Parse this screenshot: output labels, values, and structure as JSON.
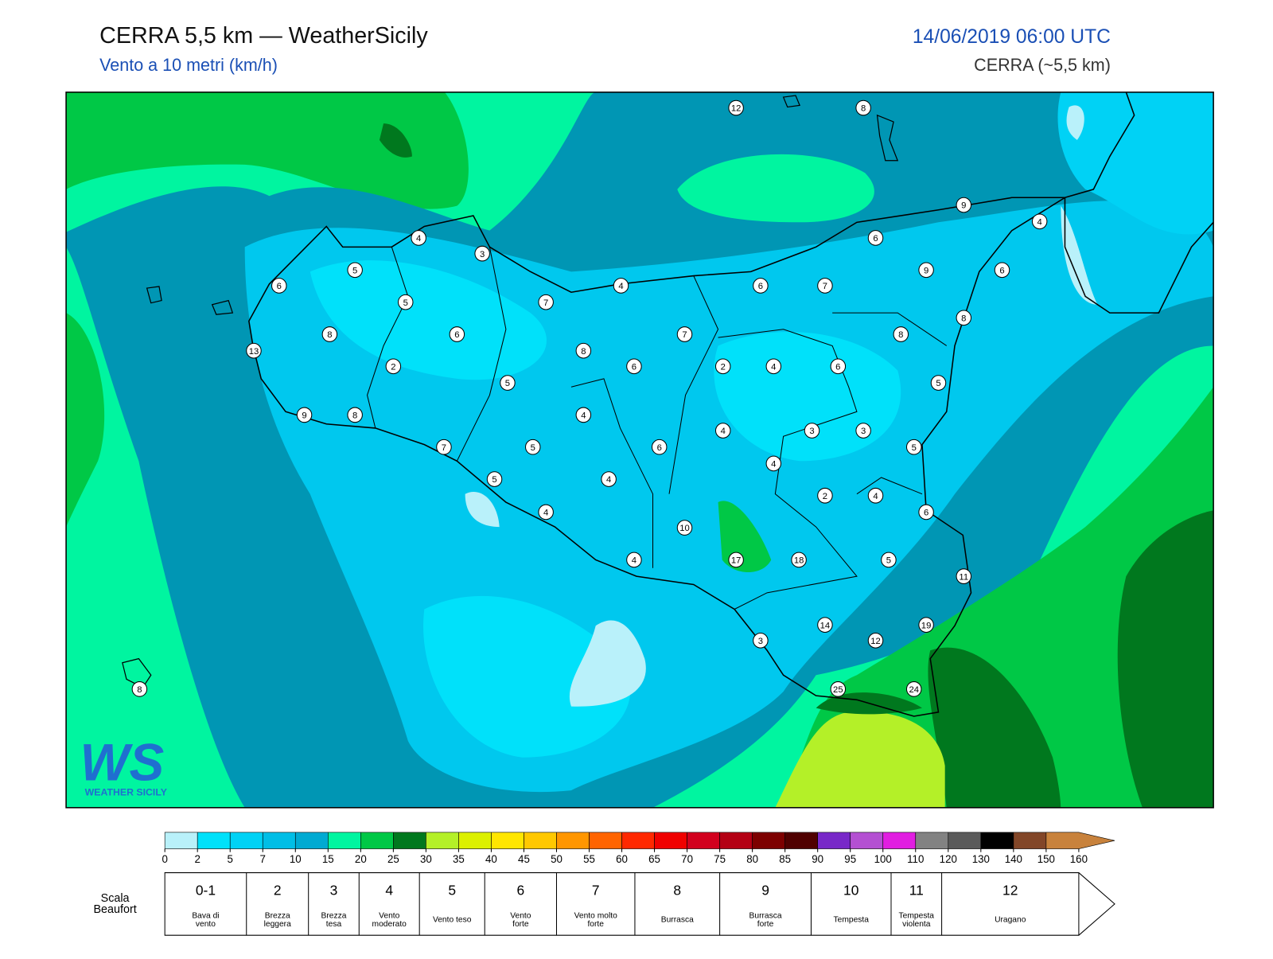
{
  "header": {
    "title": "CERRA 5,5 km — WeatherSicily",
    "subtitle": "Vento a 10 metri (km/h)",
    "date": "14/06/2019 06:00 UTC",
    "model": "CERRA (~5,5 km)"
  },
  "stations": [
    12,
    8,
    9,
    4,
    4,
    3,
    6,
    5,
    9,
    6,
    6,
    4,
    6,
    7,
    5,
    7,
    8,
    8,
    6,
    7,
    8,
    13,
    8,
    2,
    6,
    2,
    4,
    6,
    5,
    5,
    4,
    9,
    8,
    4,
    3,
    3,
    7,
    5,
    6,
    5,
    4,
    5,
    4,
    2,
    4,
    4,
    6,
    10,
    17,
    18,
    4,
    5,
    11,
    14,
    19,
    3,
    12,
    25,
    24,
    8
  ],
  "colorbar": {
    "ticks": [
      0,
      2,
      5,
      7,
      10,
      15,
      20,
      25,
      30,
      35,
      40,
      45,
      50,
      55,
      60,
      65,
      70,
      75,
      80,
      85,
      90,
      95,
      100,
      110,
      120,
      130,
      140,
      150,
      160
    ],
    "colors": [
      "#b9f1fa",
      "#00e1fa",
      "#00d2f5",
      "#00bee6",
      "#00aad2",
      "#00f5a0",
      "#00c846",
      "#00781e",
      "#b4f028",
      "#dcf000",
      "#ffe600",
      "#ffc800",
      "#ff9600",
      "#ff6400",
      "#ff2800",
      "#f00000",
      "#d2001e",
      "#b40014",
      "#7d0000",
      "#500000",
      "#7828c8",
      "#b450d2",
      "#e11ee1",
      "#828282",
      "#5a5a5a",
      "#000000",
      "#824628",
      "#c8823c"
    ]
  },
  "beaufort": {
    "label": [
      "Scala",
      "Beaufort"
    ],
    "levels": [
      {
        "number": "0-1",
        "desc": [
          "Bava di",
          "vento"
        ]
      },
      {
        "number": 2,
        "desc": [
          "Brezza",
          "leggera"
        ]
      },
      {
        "number": 3,
        "desc": [
          "Brezza",
          "tesa"
        ]
      },
      {
        "number": 4,
        "desc": [
          "Vento",
          "moderato"
        ]
      },
      {
        "number": 5,
        "desc": [
          "Vento teso"
        ]
      },
      {
        "number": 6,
        "desc": [
          "Vento",
          "forte"
        ]
      },
      {
        "number": 7,
        "desc": [
          "Vento molto",
          "forte"
        ]
      },
      {
        "number": 8,
        "desc": [
          "Burrasca"
        ]
      },
      {
        "number": 9,
        "desc": [
          "Burrasca",
          "forte"
        ]
      },
      {
        "number": 10,
        "desc": [
          "Tempesta"
        ]
      },
      {
        "number": 11,
        "desc": [
          "Tempesta",
          "violenta"
        ]
      },
      {
        "number": 12,
        "desc": [
          "Uragano"
        ]
      }
    ]
  },
  "logo": {
    "mark": "WS",
    "text": "WEATHER SICILY"
  }
}
